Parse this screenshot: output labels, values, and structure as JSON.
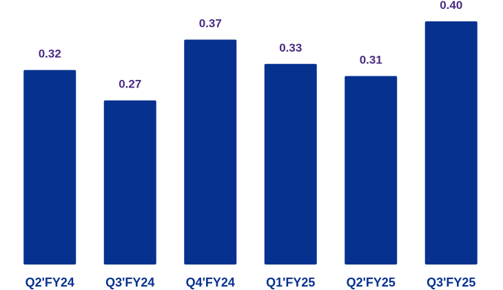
{
  "chart_data": {
    "type": "bar",
    "categories": [
      "Q2'FY24",
      "Q3'FY24",
      "Q4'FY24",
      "Q1'FY25",
      "Q2'FY25",
      "Q3'FY25"
    ],
    "values": [
      0.32,
      0.27,
      0.37,
      0.33,
      0.31,
      0.4
    ],
    "data_labels": [
      "0.32",
      "0.27",
      "0.37",
      "0.33",
      "0.31",
      "0.40"
    ],
    "title": "",
    "xlabel": "",
    "ylabel": "",
    "ylim": [
      0,
      0.4
    ],
    "grid": false,
    "legend": "none"
  },
  "colors": {
    "bar": "#06318f",
    "value_label": "#4a2c82",
    "category_label": "#06318f"
  }
}
